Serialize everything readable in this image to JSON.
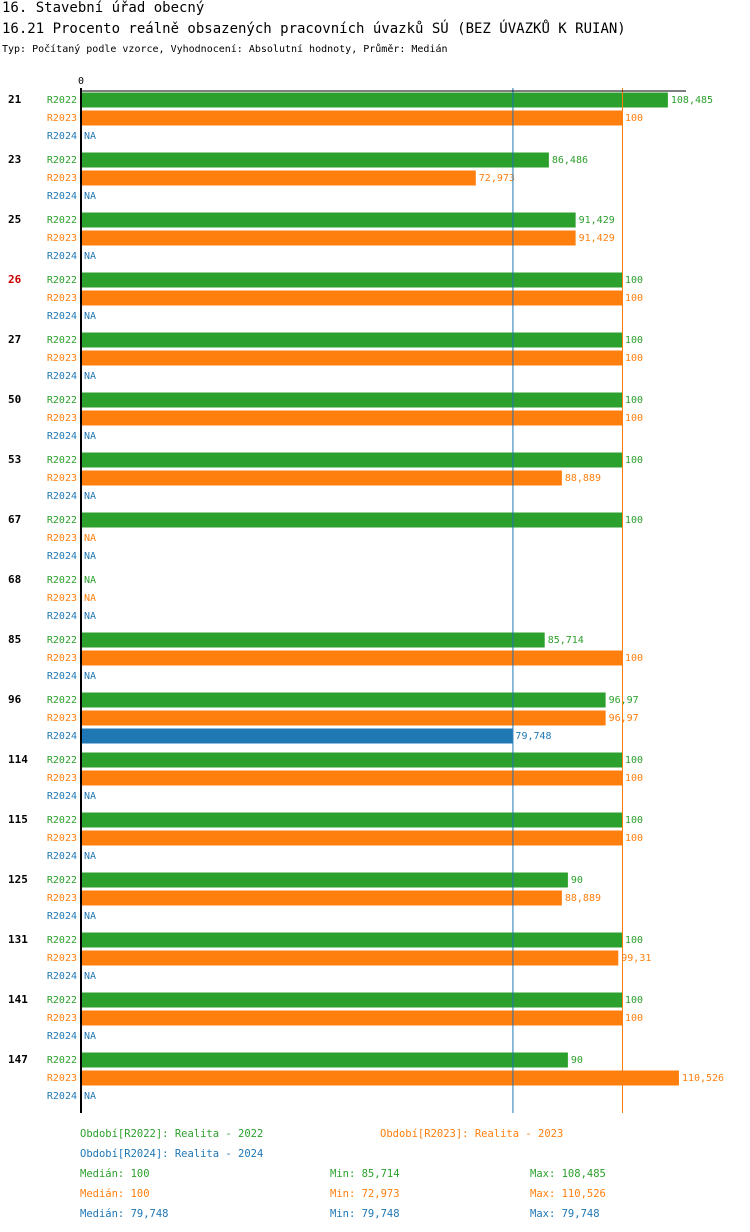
{
  "header": {
    "title": "16. Stavební úřad obecný",
    "subtitle": "16.21 Procento reálně obsazených pracovních úvazků SÚ (BEZ ÚVAZKŮ K RUIAN)",
    "info": "Typ: Počítaný podle vzorce, Vyhodnocení: Absolutní hodnoty, Průměr: Medián"
  },
  "colors": {
    "R2022": "#2ca02c",
    "R2023": "#ff7f0e",
    "R2024": "#1f77b4",
    "highlight": "#cc0000"
  },
  "chart_data": {
    "type": "bar",
    "orientation": "horizontal",
    "axis_zero_label": "0",
    "xlim": [
      0,
      111.5
    ],
    "na_label": "NA",
    "series_names": [
      "R2022",
      "R2023",
      "R2024"
    ],
    "groups": [
      {
        "label": "21",
        "highlight": false,
        "values": [
          108.485,
          100,
          null
        ],
        "labels": [
          "108,485",
          "100",
          "NA"
        ]
      },
      {
        "label": "23",
        "highlight": false,
        "values": [
          86.486,
          72.973,
          null
        ],
        "labels": [
          "86,486",
          "72,973",
          "NA"
        ]
      },
      {
        "label": "25",
        "highlight": false,
        "values": [
          91.429,
          91.429,
          null
        ],
        "labels": [
          "91,429",
          "91,429",
          "NA"
        ]
      },
      {
        "label": "26",
        "highlight": true,
        "values": [
          100,
          100,
          null
        ],
        "labels": [
          "100",
          "100",
          "NA"
        ]
      },
      {
        "label": "27",
        "highlight": false,
        "values": [
          100,
          100,
          null
        ],
        "labels": [
          "100",
          "100",
          "NA"
        ]
      },
      {
        "label": "50",
        "highlight": false,
        "values": [
          100,
          100,
          null
        ],
        "labels": [
          "100",
          "100",
          "NA"
        ]
      },
      {
        "label": "53",
        "highlight": false,
        "values": [
          100,
          88.889,
          null
        ],
        "labels": [
          "100",
          "88,889",
          "NA"
        ]
      },
      {
        "label": "67",
        "highlight": false,
        "values": [
          100,
          null,
          null
        ],
        "labels": [
          "100",
          "NA",
          "NA"
        ]
      },
      {
        "label": "68",
        "highlight": false,
        "values": [
          null,
          null,
          null
        ],
        "labels": [
          "NA",
          "NA",
          "NA"
        ]
      },
      {
        "label": "85",
        "highlight": false,
        "values": [
          85.714,
          100,
          null
        ],
        "labels": [
          "85,714",
          "100",
          "NA"
        ]
      },
      {
        "label": "96",
        "highlight": false,
        "values": [
          96.97,
          96.97,
          79.748
        ],
        "labels": [
          "96,97",
          "96,97",
          "79,748"
        ]
      },
      {
        "label": "114",
        "highlight": false,
        "values": [
          100,
          100,
          null
        ],
        "labels": [
          "100",
          "100",
          "NA"
        ]
      },
      {
        "label": "115",
        "highlight": false,
        "values": [
          100,
          100,
          null
        ],
        "labels": [
          "100",
          "100",
          "NA"
        ]
      },
      {
        "label": "125",
        "highlight": false,
        "values": [
          90,
          88.889,
          null
        ],
        "labels": [
          "90",
          "88,889",
          "NA"
        ]
      },
      {
        "label": "131",
        "highlight": false,
        "values": [
          100,
          99.31,
          null
        ],
        "labels": [
          "100",
          "99,31",
          "NA"
        ]
      },
      {
        "label": "141",
        "highlight": false,
        "values": [
          100,
          100,
          null
        ],
        "labels": [
          "100",
          "100",
          "NA"
        ]
      },
      {
        "label": "147",
        "highlight": false,
        "values": [
          90,
          110.526,
          null
        ],
        "labels": [
          "90",
          "110,526",
          "NA"
        ]
      }
    ],
    "median_lines": [
      {
        "series": "R2022",
        "value": 100
      },
      {
        "series": "R2023",
        "value": 100
      },
      {
        "series": "R2024",
        "value": 79.748
      }
    ]
  },
  "legend": {
    "periods": [
      {
        "series": "R2022",
        "text": "Období[R2022]: Realita - 2022"
      },
      {
        "series": "R2023",
        "text": "Období[R2023]: Realita - 2023"
      },
      {
        "series": "R2024",
        "text": "Období[R2024]: Realita - 2024"
      }
    ],
    "stats": [
      {
        "series": "R2022",
        "median": "Medián: 100",
        "min": "Min: 85,714",
        "max": "Max: 108,485"
      },
      {
        "series": "R2023",
        "median": "Medián: 100",
        "min": "Min: 72,973",
        "max": "Max: 110,526"
      },
      {
        "series": "R2024",
        "median": "Medián: 79,748",
        "min": "Min: 79,748",
        "max": "Max: 79,748"
      }
    ]
  }
}
